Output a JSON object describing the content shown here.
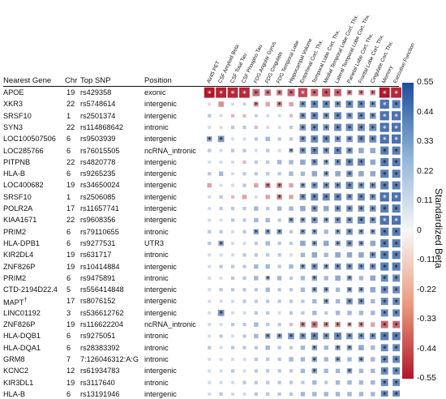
{
  "chart_data": {
    "type": "heatmap",
    "table_headers": {
      "gene": "Nearest Gene",
      "chr": "Chr",
      "snp": "Top SNP",
      "position": "Position"
    },
    "columns": [
      "AV45 PET",
      "CSF Amyloid Beta",
      "CSF Total Tau",
      "CSF Phospho Tau",
      "FDG Angular Gyrus",
      "FDG Cingulate",
      "FDG Temporal Lobe",
      "Hippocampal Volume",
      "Entorhinal Cort. Thx.",
      "Temporal Lobe Cort. Thx.",
      "Medial Temporal Lobe Cort. Thx.",
      "Lateral Temporal Lobe Cort. Thx.",
      "Parietal Lobe Cort. Thx.",
      "Frontal Lobe Cort. Thx.",
      "Cingulate Cort. Thx.",
      "Memory",
      "Executive Function"
    ],
    "rows": [
      {
        "gene": "APOE",
        "chr": "19",
        "snp": "rs429358",
        "position": "exonic",
        "values": [
          -0.55,
          -0.52,
          -0.5,
          -0.5,
          -0.3,
          -0.25,
          -0.22,
          -0.3,
          -0.4,
          -0.3,
          -0.35,
          -0.3,
          -0.2,
          -0.2,
          -0.2,
          -0.55,
          -0.5
        ],
        "stars": [
          1,
          1,
          1,
          1,
          1,
          1,
          1,
          1,
          1,
          1,
          1,
          1,
          1,
          1,
          1,
          1,
          1
        ]
      },
      {
        "gene": "XKR3",
        "chr": "22",
        "snp": "rs5748614",
        "position": "intergenic",
        "values": [
          -0.05,
          -0.2,
          0.05,
          0.08,
          -0.18,
          -0.15,
          -0.2,
          -0.15,
          0.25,
          0.3,
          0.3,
          0.25,
          0.3,
          0.3,
          0.25,
          0.4,
          0.35
        ],
        "stars": [
          0,
          0,
          0,
          0,
          1,
          0,
          1,
          0,
          1,
          1,
          1,
          1,
          1,
          1,
          1,
          1,
          1
        ]
      },
      {
        "gene": "SRSF10",
        "chr": "1",
        "snp": "rs2501374",
        "position": "intergenic",
        "values": [
          0.1,
          0.05,
          -0.1,
          -0.1,
          0.08,
          0.05,
          0.05,
          -0.1,
          0.25,
          0.3,
          0.25,
          0.3,
          0.25,
          0.3,
          0.25,
          0.4,
          0.4
        ],
        "stars": [
          0,
          0,
          0,
          0,
          0,
          0,
          0,
          0,
          1,
          1,
          1,
          1,
          1,
          1,
          1,
          1,
          1
        ]
      },
      {
        "gene": "SYN3",
        "chr": "22",
        "snp": "rs114868642",
        "position": "intronic",
        "values": [
          0.05,
          -0.05,
          0.1,
          0.1,
          -0.1,
          -0.05,
          -0.05,
          0.1,
          0.25,
          0.3,
          0.25,
          0.3,
          0.3,
          0.3,
          0.3,
          0.4,
          0.4
        ],
        "stars": [
          0,
          0,
          0,
          0,
          0,
          0,
          0,
          0,
          1,
          1,
          1,
          1,
          1,
          1,
          1,
          1,
          1
        ]
      },
      {
        "gene": "LOC100507506",
        "chr": "6",
        "snp": "rs9503939",
        "position": "intergenic",
        "values": [
          0.2,
          0.25,
          0.05,
          0.05,
          0.1,
          0.15,
          0.1,
          0.1,
          0.25,
          0.3,
          0.3,
          0.25,
          0.25,
          0.3,
          0.3,
          0.4,
          0.4
        ],
        "stars": [
          1,
          1,
          0,
          0,
          0,
          0,
          0,
          0,
          1,
          1,
          1,
          1,
          1,
          1,
          1,
          1,
          1
        ]
      },
      {
        "gene": "LOC285766",
        "chr": "6",
        "snp": "rs76015505",
        "position": "ncRNA_intronic",
        "values": [
          0.1,
          0.05,
          0.1,
          0.1,
          0.05,
          0.1,
          0.05,
          0.15,
          0.25,
          0.3,
          0.25,
          0.3,
          0.25,
          0.2,
          0.2,
          0.35,
          0.35
        ],
        "stars": [
          0,
          0,
          0,
          0,
          0,
          0,
          0,
          1,
          1,
          1,
          1,
          1,
          1,
          0,
          0,
          1,
          1
        ]
      },
      {
        "gene": "PITPNB",
        "chr": "22",
        "snp": "rs4820778",
        "position": "intergenic",
        "values": [
          0.05,
          0.05,
          0.05,
          -0.1,
          0.1,
          0.1,
          0.15,
          0.15,
          0.2,
          0.25,
          0.2,
          0.25,
          0.3,
          0.3,
          0.2,
          0.35,
          0.35
        ],
        "stars": [
          0,
          0,
          0,
          0,
          0,
          0,
          0,
          0,
          0,
          1,
          1,
          1,
          1,
          1,
          0,
          1,
          1
        ]
      },
      {
        "gene": "HLA-B",
        "chr": "6",
        "snp": "rs9265235",
        "position": "intergenic",
        "values": [
          0.1,
          0.15,
          0.05,
          0.1,
          0.1,
          0.1,
          0.1,
          0.15,
          0.15,
          0.2,
          0.2,
          0.2,
          0.25,
          0.2,
          0.2,
          0.35,
          0.35
        ],
        "stars": [
          0,
          0,
          0,
          0,
          0,
          0,
          0,
          0,
          0,
          0,
          1,
          0,
          1,
          0,
          0,
          1,
          1
        ]
      },
      {
        "gene": "LOC400682",
        "chr": "19",
        "snp": "rs34650024",
        "position": "intergenic",
        "values": [
          -0.15,
          0.05,
          0.05,
          0.1,
          -0.15,
          -0.2,
          -0.2,
          -0.15,
          0.2,
          0.25,
          0.25,
          0.25,
          0.3,
          0.25,
          0.25,
          0.35,
          0.35
        ],
        "stars": [
          0,
          0,
          0,
          0,
          0,
          1,
          1,
          0,
          1,
          1,
          1,
          1,
          1,
          1,
          1,
          1,
          1
        ]
      },
      {
        "gene": "SRSF10",
        "chr": "1",
        "snp": "rs2506085",
        "position": "intergenic",
        "values": [
          0.05,
          0.1,
          -0.1,
          -0.15,
          0.05,
          -0.15,
          -0.2,
          -0.15,
          0.25,
          0.3,
          0.3,
          0.3,
          0.25,
          0.3,
          0.25,
          0.4,
          0.4
        ],
        "stars": [
          0,
          0,
          0,
          0,
          0,
          0,
          1,
          0,
          1,
          1,
          1,
          1,
          1,
          1,
          1,
          1,
          1
        ]
      },
      {
        "gene": "POLR2A",
        "chr": "17",
        "snp": "rs11657741",
        "position": "intergenic",
        "values": [
          0.05,
          0.1,
          0.1,
          0.1,
          0.15,
          0.1,
          0.15,
          0.15,
          0.2,
          0.25,
          0.2,
          0.25,
          0.25,
          0.25,
          0.25,
          0.35,
          0.35
        ],
        "stars": [
          0,
          0,
          0,
          0,
          0,
          0,
          0,
          0,
          0,
          1,
          0,
          1,
          1,
          1,
          1,
          1,
          1
        ]
      },
      {
        "gene": "KIAA1671",
        "chr": "22",
        "snp": "rs9608356",
        "position": "intergenic",
        "values": [
          0.05,
          0.05,
          0.1,
          0.1,
          0.15,
          0.15,
          0.1,
          0.2,
          0.2,
          0.25,
          0.2,
          0.25,
          0.25,
          0.3,
          0.25,
          0.4,
          0.4
        ],
        "stars": [
          0,
          0,
          0,
          0,
          0,
          0,
          0,
          1,
          1,
          1,
          1,
          1,
          1,
          1,
          1,
          1,
          1
        ]
      },
      {
        "gene": "PRIM2",
        "chr": "6",
        "snp": "rs79110655",
        "position": "intronic",
        "values": [
          0.1,
          0.1,
          0.05,
          0.1,
          0.2,
          0.2,
          0.2,
          0.1,
          0.2,
          0.2,
          0.15,
          0.2,
          0.25,
          0.2,
          0.2,
          0.35,
          0.35
        ],
        "stars": [
          0,
          0,
          0,
          0,
          1,
          1,
          1,
          0,
          1,
          1,
          0,
          1,
          1,
          1,
          1,
          1,
          1
        ]
      },
      {
        "gene": "HLA-DPB1",
        "chr": "6",
        "snp": "rs9277531",
        "position": "UTR3",
        "values": [
          0.1,
          0.2,
          0.05,
          0.05,
          0.1,
          0.15,
          0.1,
          0.1,
          0.2,
          0.2,
          0.2,
          0.2,
          0.25,
          0.2,
          0.2,
          0.35,
          0.35
        ],
        "stars": [
          0,
          1,
          0,
          0,
          0,
          0,
          0,
          0,
          0,
          1,
          0,
          1,
          1,
          1,
          0,
          1,
          1
        ]
      },
      {
        "gene": "KIR2DL4",
        "chr": "19",
        "snp": "rs631717",
        "position": "intronic",
        "values": [
          0.05,
          0.05,
          0.05,
          0.1,
          0.1,
          0.1,
          0.1,
          0.05,
          0.15,
          0.2,
          0.15,
          0.2,
          0.2,
          0.2,
          0.25,
          0.35,
          0.35
        ],
        "stars": [
          0,
          0,
          0,
          0,
          0,
          0,
          0,
          0,
          0,
          0,
          0,
          0,
          0,
          0,
          1,
          1,
          1
        ]
      },
      {
        "gene": "ZNF826P",
        "chr": "19",
        "snp": "rs10414884",
        "position": "intergenic",
        "values": [
          0.05,
          0.1,
          0.1,
          0.1,
          0.15,
          0.15,
          0.1,
          0.15,
          0.2,
          0.25,
          0.2,
          0.25,
          0.25,
          0.25,
          0.25,
          0.35,
          0.35
        ],
        "stars": [
          0,
          0,
          0,
          0,
          0,
          0,
          0,
          0,
          1,
          1,
          1,
          1,
          1,
          1,
          1,
          1,
          1
        ]
      },
      {
        "gene": "PRIM2",
        "chr": "6",
        "snp": "rs9475891",
        "position": "intronic",
        "values": [
          0.05,
          0.05,
          0.1,
          0.1,
          0.15,
          0.15,
          0.15,
          0.1,
          0.15,
          0.2,
          0.15,
          0.2,
          0.2,
          0.15,
          0.2,
          0.3,
          0.3
        ],
        "stars": [
          0,
          0,
          0,
          0,
          0,
          1,
          0,
          0,
          0,
          1,
          0,
          0,
          1,
          0,
          0,
          1,
          1
        ]
      },
      {
        "gene": "CTD-2194D22.4",
        "chr": "5",
        "snp": "rs556414848",
        "position": "intergenic",
        "values": [
          0.05,
          0.1,
          0.1,
          0.1,
          0.1,
          0.15,
          0.1,
          0.1,
          0.15,
          0.2,
          0.2,
          0.15,
          0.2,
          0.2,
          0.2,
          0.3,
          0.3
        ],
        "stars": [
          0,
          0,
          0,
          0,
          0,
          0,
          0,
          0,
          0,
          1,
          1,
          0,
          1,
          1,
          0,
          1,
          1
        ]
      },
      {
        "gene": "MAPT",
        "gene_mark": "†",
        "chr": "17",
        "snp": "rs8076152",
        "position": "intergenic",
        "values": [
          0.05,
          0.05,
          0.05,
          0.1,
          0.1,
          0.1,
          0.1,
          0.1,
          0.1,
          0.15,
          0.2,
          0.15,
          0.25,
          0.25,
          0.15,
          0.3,
          0.3
        ],
        "stars": [
          0,
          0,
          0,
          0,
          0,
          0,
          0,
          0,
          0,
          0,
          1,
          0,
          1,
          1,
          0,
          1,
          1
        ]
      },
      {
        "gene": "LINC01192",
        "chr": "3",
        "snp": "rs536612762",
        "position": "intergenic",
        "values": [
          0.05,
          0.25,
          0.05,
          0.05,
          0.1,
          0.1,
          0.05,
          0.1,
          0.1,
          0.15,
          0.1,
          0.15,
          0.15,
          0.15,
          0.15,
          0.3,
          0.3
        ],
        "stars": [
          0,
          1,
          0,
          0,
          0,
          0,
          0,
          0,
          0,
          0,
          0,
          0,
          0,
          0,
          0,
          1,
          1
        ]
      },
      {
        "gene": "ZNF826P",
        "chr": "19",
        "snp": "rs116622204",
        "position": "ncRNA_intronic",
        "values": [
          0.05,
          0.05,
          0.1,
          0.1,
          0.15,
          0.1,
          0.1,
          -0.1,
          -0.2,
          -0.25,
          -0.2,
          -0.2,
          -0.15,
          -0.2,
          -0.15,
          -0.3,
          -0.3
        ],
        "stars": [
          0,
          0,
          0,
          0,
          0,
          0,
          0,
          0,
          1,
          1,
          1,
          1,
          1,
          1,
          0,
          1,
          1
        ]
      },
      {
        "gene": "HLA-DQB1",
        "chr": "6",
        "snp": "rs9275051",
        "position": "intronic",
        "values": [
          0.05,
          0.1,
          0.05,
          0.1,
          0.15,
          0.2,
          0.2,
          0.25,
          0.25,
          0.3,
          0.25,
          0.3,
          0.25,
          0.25,
          0.25,
          0.35,
          0.35
        ],
        "stars": [
          0,
          0,
          0,
          0,
          0,
          1,
          1,
          1,
          1,
          1,
          1,
          1,
          1,
          1,
          1,
          1,
          1
        ]
      },
      {
        "gene": "HLA-DQA1",
        "chr": "6",
        "snp": "rs28383392",
        "position": "intronic",
        "values": [
          0.1,
          0.05,
          0.1,
          0.1,
          0.1,
          0.15,
          0.1,
          0.1,
          0.15,
          0.2,
          0.15,
          0.2,
          0.2,
          0.2,
          0.15,
          0.3,
          0.3
        ],
        "stars": [
          0,
          0,
          0,
          0,
          0,
          0,
          0,
          0,
          0,
          1,
          0,
          1,
          1,
          0,
          0,
          1,
          1
        ]
      },
      {
        "gene": "GRM8",
        "chr": "7",
        "snp": "7:126046312:A:G",
        "position": "intronic",
        "values": [
          0.05,
          0.05,
          0.05,
          0.05,
          0.1,
          0.1,
          0.1,
          0.15,
          0.15,
          0.2,
          0.15,
          0.2,
          0.15,
          0.2,
          0.15,
          0.3,
          0.3
        ],
        "stars": [
          0,
          0,
          0,
          0,
          0,
          0,
          0,
          0,
          0,
          1,
          0,
          1,
          0,
          1,
          0,
          1,
          1
        ]
      },
      {
        "gene": "KCNC2",
        "chr": "12",
        "snp": "rs61934783",
        "position": "intergenic",
        "values": [
          0.05,
          0.05,
          0.1,
          0.05,
          0.1,
          0.1,
          0.1,
          0.1,
          0.15,
          0.2,
          0.15,
          0.15,
          0.2,
          0.15,
          0.15,
          0.3,
          0.3
        ],
        "stars": [
          0,
          0,
          0,
          0,
          0,
          0,
          0,
          0,
          0,
          1,
          0,
          0,
          1,
          0,
          0,
          1,
          1
        ]
      },
      {
        "gene": "KIR3DL1",
        "chr": "19",
        "snp": "rs3117640",
        "position": "intronic",
        "values": [
          0.05,
          0.05,
          0.05,
          0.1,
          0.1,
          0.1,
          0.1,
          0.1,
          0.1,
          0.15,
          0.1,
          0.15,
          0.15,
          0.15,
          0.15,
          0.3,
          0.3
        ],
        "stars": [
          0,
          0,
          0,
          0,
          0,
          0,
          0,
          0,
          0,
          0,
          0,
          0,
          0,
          0,
          0,
          1,
          1
        ]
      },
      {
        "gene": "HLA-B",
        "chr": "6",
        "snp": "rs13191946",
        "position": "intergenic",
        "values": [
          0.05,
          0.1,
          0.05,
          0.05,
          0.1,
          0.1,
          0.1,
          0.1,
          0.15,
          0.15,
          0.15,
          0.15,
          0.15,
          0.15,
          0.15,
          0.3,
          0.3
        ],
        "stars": [
          0,
          0,
          0,
          0,
          0,
          0,
          0,
          0,
          0,
          0,
          0,
          0,
          0,
          0,
          0,
          1,
          1
        ]
      }
    ],
    "star_glyph": "*",
    "colorbar": {
      "title": "Standardized Beta",
      "ticks": [
        "0.55",
        "0.44",
        "0.33",
        "0.22",
        "0.11",
        "0",
        "-0.11",
        "-0.22",
        "-0.33",
        "-0.44",
        "-0.55"
      ],
      "range": [
        -0.55,
        0.55
      ],
      "color_negative": "#b2182b",
      "color_neutral": "#f7f7f7",
      "color_positive": "#1e4e9c"
    },
    "cell_shape_note": "square size scales with |beta|"
  }
}
